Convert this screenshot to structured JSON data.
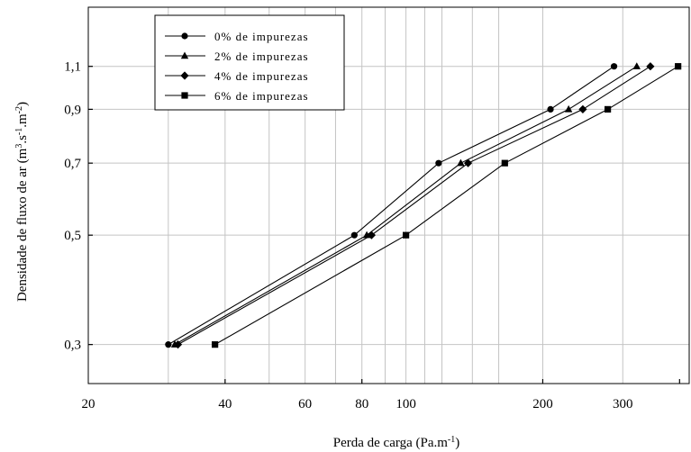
{
  "chart_data": {
    "type": "line",
    "title": "",
    "xlabel": {
      "main": "Perda de carga (Pa.m",
      "sup": "-1",
      "close": ")"
    },
    "ylabel": {
      "p1": "Densidade de fluxo de ar (m",
      "s1": "3",
      "p2": ".s",
      "s2": "-1",
      "p3": ".m",
      "s3": "-2",
      "p4": ")"
    },
    "x_scale": "log",
    "y_scale": "log",
    "xlim": [
      20,
      420
    ],
    "ylim": [
      0.25,
      1.45
    ],
    "x_tick_labels": [
      {
        "value": 20,
        "label": "20"
      },
      {
        "value": 40,
        "label": "40"
      },
      {
        "value": 60,
        "label": "60"
      },
      {
        "value": 80,
        "label": "80"
      },
      {
        "value": 100,
        "label": "100"
      },
      {
        "value": 200,
        "label": "200"
      },
      {
        "value": 300,
        "label": "300"
      }
    ],
    "y_tick_labels": [
      {
        "value": 0.3,
        "label": "0,3"
      },
      {
        "value": 0.5,
        "label": "0,5"
      },
      {
        "value": 0.7,
        "label": "0,7"
      },
      {
        "value": 0.9,
        "label": "0,9"
      },
      {
        "value": 1.1,
        "label": "1,1"
      }
    ],
    "grid": true,
    "legend_position": "top-left",
    "series": [
      {
        "name": "0% de impurezas",
        "marker": "circle",
        "x": [
          30,
          77,
          118,
          208,
          287
        ],
        "y": [
          0.3,
          0.5,
          0.7,
          0.9,
          1.1
        ]
      },
      {
        "name": "2% de impurezas",
        "marker": "triangle",
        "x": [
          31,
          82,
          132,
          228,
          322
        ],
        "y": [
          0.3,
          0.5,
          0.7,
          0.9,
          1.1
        ]
      },
      {
        "name": "4% de impurezas",
        "marker": "diamond",
        "x": [
          31.5,
          84,
          137,
          245,
          345
        ],
        "y": [
          0.3,
          0.5,
          0.7,
          0.9,
          1.1
        ]
      },
      {
        "name": "6% de impurezas",
        "marker": "square",
        "x": [
          38,
          100,
          165,
          278,
          397
        ],
        "y": [
          0.3,
          0.5,
          0.7,
          0.9,
          1.1
        ]
      }
    ]
  }
}
